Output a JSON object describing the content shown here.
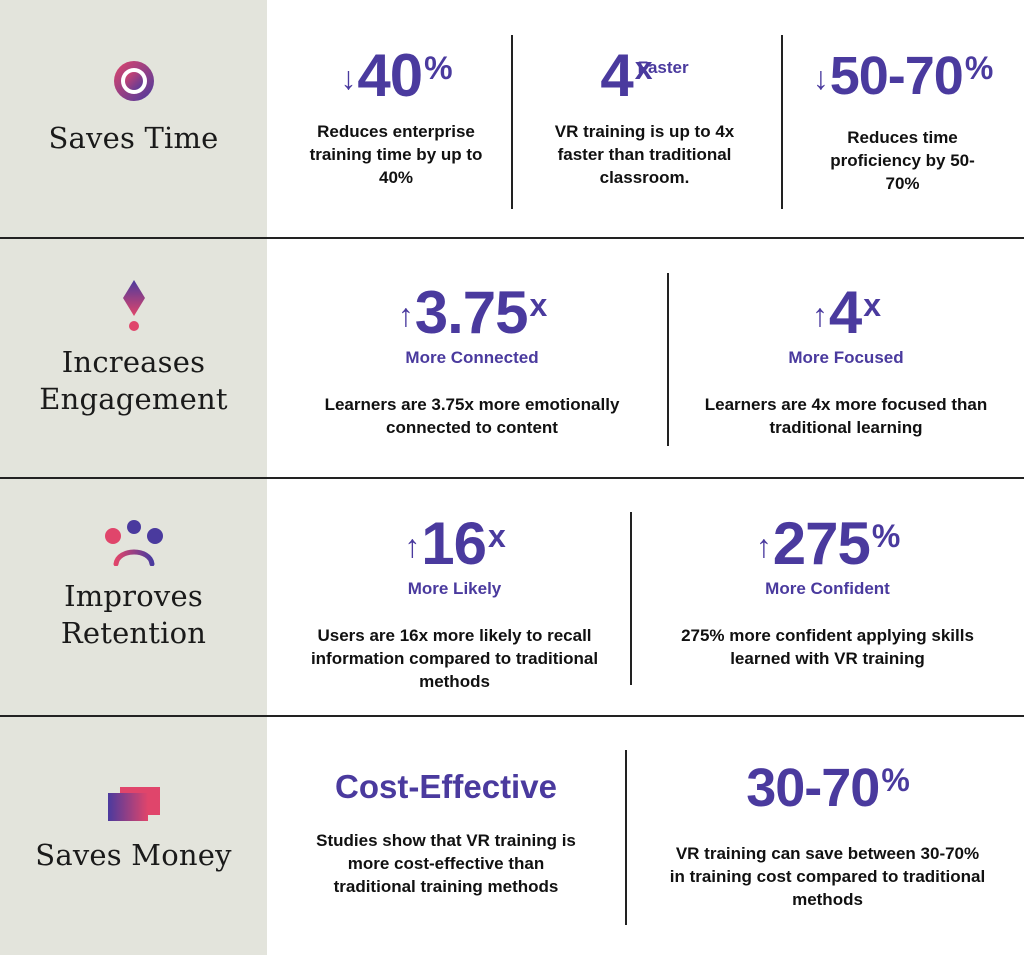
{
  "sections": [
    {
      "label": "Saves Time",
      "icon": "circle-target-icon",
      "stats": [
        {
          "arrow": "↓",
          "value": "40",
          "suffix": "%",
          "description": "Reduces enterprise training time by up to 40%"
        },
        {
          "value": "4",
          "suffix": "x",
          "suffix_note": "Faster",
          "description": "VR training is up to 4x faster than traditional classroom."
        },
        {
          "arrow": "↓",
          "value": "50-70",
          "suffix": "%",
          "description": "Reduces time proficiency by 50-70%"
        }
      ]
    },
    {
      "label_lines": [
        "Increases",
        "Engagement"
      ],
      "icon": "exclamation-diamond-icon",
      "stats": [
        {
          "arrow": "↑",
          "value": "3.75",
          "suffix": "x",
          "subtitle": "More Connected",
          "description": "Learners are 3.75x more emotionally connected to content"
        },
        {
          "arrow": "↑",
          "value": "4",
          "suffix": "x",
          "subtitle": "More Focused",
          "description": "Learners are 4x more focused than traditional learning"
        }
      ]
    },
    {
      "label_lines": [
        "Improves",
        "Retention"
      ],
      "icon": "people-group-icon",
      "stats": [
        {
          "arrow": "↑",
          "value": "16",
          "suffix": "x",
          "subtitle": "More Likely",
          "description": "Users are 16x more likely to recall information compared to traditional methods"
        },
        {
          "arrow": "↑",
          "value": "275",
          "suffix": "%",
          "subtitle": "More Confident",
          "description": "275% more confident applying skills learned with VR training"
        }
      ]
    },
    {
      "label": "Saves Money",
      "icon": "stacked-bills-icon",
      "stats": [
        {
          "headline": "Cost-Effective",
          "description": "Studies show that VR training is more cost-effective than traditional training methods"
        },
        {
          "value": "30-70",
          "suffix": "%",
          "description": "VR training can save between 30-70% in training cost compared to traditional methods"
        }
      ]
    }
  ],
  "colors": {
    "accent": "#4a3a9e",
    "gradient_start": "#e0456b",
    "gradient_end": "#4a3a9e",
    "sidebar": "#e3e4dc"
  }
}
